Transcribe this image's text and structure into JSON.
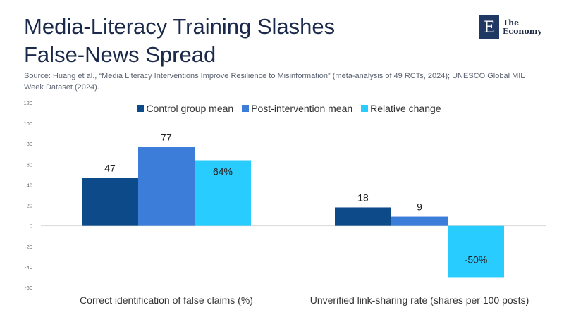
{
  "header": {
    "title_line1": "Media-Literacy Training Slashes",
    "title_line2": "False-News Spread",
    "source": "Source:  Huang et al., “Media Literacy Interventions Improve Resilience to Misinformation” (meta-analysis of 49 RCTs, 2024); UNESCO Global MIL Week Dataset (2024)."
  },
  "logo": {
    "mark": "E",
    "line1": "The",
    "line2": "Economy"
  },
  "colors": {
    "control": "#0d4a8a",
    "post": "#3b7dd8",
    "relative": "#29ccff",
    "axis": "#d9d9d9",
    "text": "#333333"
  },
  "chart_data": {
    "type": "bar",
    "categories": [
      "Correct identification of false claims (%)",
      "Unverified link-sharing rate (shares per 100 posts)"
    ],
    "series": [
      {
        "name": "Control group mean",
        "values": [
          47,
          18
        ],
        "labels": [
          "47",
          "18"
        ]
      },
      {
        "name": "Post-intervention mean",
        "values": [
          77,
          9
        ],
        "labels": [
          "77",
          "9"
        ]
      },
      {
        "name": "Relative change",
        "values": [
          64,
          -50
        ],
        "labels": [
          "64%",
          "-50%"
        ]
      }
    ],
    "ylim": [
      -60,
      120
    ],
    "yticks": [
      -60,
      -40,
      -20,
      0,
      20,
      40,
      60,
      80,
      100,
      120
    ],
    "legend_position": "top",
    "grid": false
  }
}
